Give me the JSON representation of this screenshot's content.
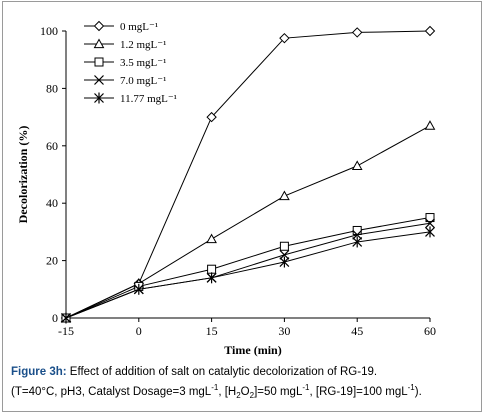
{
  "chart_data": {
    "type": "line",
    "xlabel": "Time (min)",
    "ylabel": "Decolorization (%)",
    "x_ticks": [
      -15,
      0,
      15,
      30,
      45,
      60
    ],
    "y_ticks": [
      0,
      20,
      40,
      60,
      80,
      100
    ],
    "xlim": [
      -15,
      60
    ],
    "ylim": [
      0,
      100
    ],
    "grid": false,
    "legend_position": "top-left",
    "series": [
      {
        "name": "0 mgL⁻¹",
        "marker": "diamond",
        "x": [
          -15,
          0,
          15,
          30,
          45,
          60
        ],
        "values": [
          0,
          12,
          70,
          97.5,
          99.5,
          100
        ]
      },
      {
        "name": "1.2 mgL⁻¹",
        "marker": "triangle",
        "x": [
          -15,
          0,
          15,
          30,
          45,
          60
        ],
        "values": [
          0,
          12,
          27.5,
          42.5,
          53,
          67
        ]
      },
      {
        "name": "3.5 mgL⁻¹",
        "marker": "square",
        "x": [
          -15,
          0,
          15,
          30,
          45,
          60
        ],
        "values": [
          0,
          11,
          17,
          25,
          30.5,
          35
        ]
      },
      {
        "name": "7.0 mgL⁻¹",
        "marker": "x",
        "x": [
          -15,
          0,
          15,
          30,
          45,
          60
        ],
        "values": [
          0,
          10,
          14,
          22,
          29,
          33
        ]
      },
      {
        "name": "11.77 mgL⁻¹",
        "marker": "star",
        "x": [
          -15,
          0,
          15,
          30,
          45,
          60
        ],
        "values": [
          0,
          10,
          14,
          19.5,
          26.5,
          30
        ]
      }
    ]
  },
  "caption": {
    "label": "Figure 3h:",
    "line1": "Effect of addition of salt on catalytic decolorization of RG-19.",
    "p_open": "(T=40°C, pH3, Catalyst Dosage=3 mgL",
    "sup_neg1": "-1",
    "p_h2o2": ", [H",
    "sub_2": "2",
    "p_o": "O",
    "p_eq50": "]=50 mgL",
    "p_rg": ", [RG-19]=100 mgL",
    "p_close": ")."
  }
}
